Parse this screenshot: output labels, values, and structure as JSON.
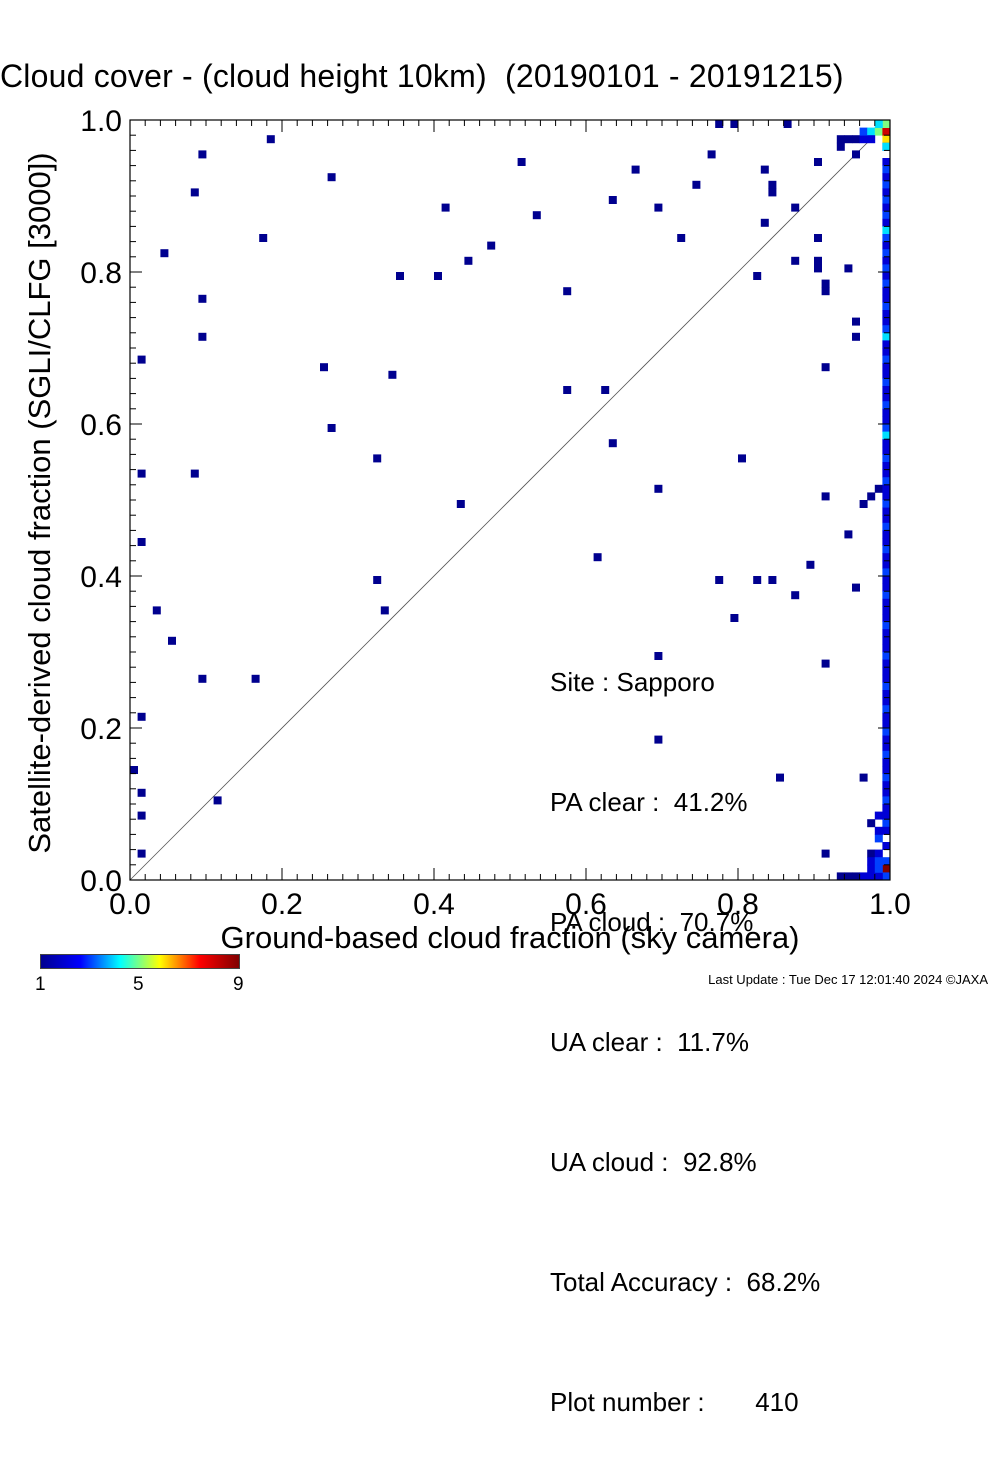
{
  "title": {
    "main": "Cloud cover - (cloud height 10km)",
    "period": "(20190101 - 20191215)"
  },
  "stats": {
    "site": "Site : Sapporo",
    "pa_clear": "PA clear :  41.2%",
    "pa_cloud": "PA cloud :  70.7%",
    "ua_clear": "UA clear :  11.7%",
    "ua_cloud": "UA cloud :  92.8%",
    "total_accuracy": "Total Accuracy :  68.2%",
    "plot_number": "Plot number :       410"
  },
  "footer": "Last Update : Tue Dec 17 12:01:40 2024  ©JAXA",
  "colorbar": {
    "ticks": [
      "1",
      "5",
      "9"
    ],
    "colors": [
      "#00008f",
      "#0000ff",
      "#00ffff",
      "#ffff00",
      "#ff0000",
      "#800000"
    ]
  },
  "chart_data": {
    "type": "heatmap",
    "xlabel": "Ground-based cloud fraction (sky camera)",
    "ylabel": "Satellite-derived cloud fraction (SGLI/CLFG [3000])",
    "xlim": [
      0.0,
      1.0
    ],
    "ylim": [
      0.0,
      1.0
    ],
    "xticks": [
      "0.0",
      "0.2",
      "0.4",
      "0.6",
      "0.8",
      "1.0"
    ],
    "yticks": [
      "0.0",
      "0.2",
      "0.4",
      "0.6",
      "0.8",
      "1.0"
    ],
    "reference_line": "1:1 diagonal",
    "points": [
      [
        0.01,
        0.03,
        1
      ],
      [
        0.0,
        0.14,
        1
      ],
      [
        0.01,
        0.11,
        1
      ],
      [
        0.01,
        0.08,
        1
      ],
      [
        0.01,
        0.21,
        1
      ],
      [
        0.01,
        0.44,
        1
      ],
      [
        0.01,
        0.53,
        1
      ],
      [
        0.01,
        0.68,
        1
      ],
      [
        0.03,
        0.35,
        1
      ],
      [
        0.04,
        0.82,
        1
      ],
      [
        0.05,
        0.31,
        1
      ],
      [
        0.08,
        0.53,
        1
      ],
      [
        0.08,
        0.9,
        1
      ],
      [
        0.09,
        0.26,
        1
      ],
      [
        0.09,
        0.71,
        1
      ],
      [
        0.09,
        0.76,
        1
      ],
      [
        0.09,
        0.95,
        1
      ],
      [
        0.11,
        0.1,
        1
      ],
      [
        0.16,
        0.26,
        1
      ],
      [
        0.17,
        0.84,
        1
      ],
      [
        0.18,
        0.97,
        1
      ],
      [
        0.25,
        0.67,
        1
      ],
      [
        0.26,
        0.59,
        1
      ],
      [
        0.26,
        0.92,
        1
      ],
      [
        0.32,
        0.39,
        1
      ],
      [
        0.32,
        0.55,
        1
      ],
      [
        0.33,
        0.35,
        1
      ],
      [
        0.34,
        0.66,
        1
      ],
      [
        0.35,
        0.79,
        1
      ],
      [
        0.4,
        0.79,
        1
      ],
      [
        0.41,
        0.88,
        1
      ],
      [
        0.43,
        0.49,
        1
      ],
      [
        0.44,
        0.81,
        1
      ],
      [
        0.47,
        0.83,
        1
      ],
      [
        0.51,
        0.94,
        1
      ],
      [
        0.53,
        0.87,
        1
      ],
      [
        0.57,
        0.77,
        1
      ],
      [
        0.57,
        0.64,
        1
      ],
      [
        0.61,
        0.42,
        1
      ],
      [
        0.62,
        0.64,
        1
      ],
      [
        0.63,
        0.57,
        1
      ],
      [
        0.63,
        0.89,
        1
      ],
      [
        0.66,
        0.93,
        1
      ],
      [
        0.69,
        0.29,
        1
      ],
      [
        0.69,
        0.18,
        1
      ],
      [
        0.69,
        0.51,
        1
      ],
      [
        0.69,
        0.88,
        1
      ],
      [
        0.72,
        0.84,
        1
      ],
      [
        0.74,
        0.91,
        1
      ],
      [
        0.76,
        0.95,
        1
      ],
      [
        0.77,
        0.39,
        1
      ],
      [
        0.77,
        0.99,
        1
      ],
      [
        0.79,
        1.0,
        1
      ],
      [
        0.79,
        0.34,
        1
      ],
      [
        0.8,
        0.55,
        1
      ],
      [
        0.82,
        0.79,
        1
      ],
      [
        0.82,
        0.39,
        1
      ],
      [
        0.83,
        0.86,
        1
      ],
      [
        0.83,
        0.93,
        1
      ],
      [
        0.84,
        0.39,
        1
      ],
      [
        0.84,
        0.9,
        1
      ],
      [
        0.84,
        0.91,
        1
      ],
      [
        0.85,
        0.13,
        1
      ],
      [
        0.86,
        0.99,
        1
      ],
      [
        0.87,
        0.81,
        1
      ],
      [
        0.87,
        0.37,
        1
      ],
      [
        0.87,
        0.88,
        1
      ],
      [
        0.89,
        0.41,
        1
      ],
      [
        0.9,
        0.84,
        1
      ],
      [
        0.9,
        0.8,
        1
      ],
      [
        0.9,
        0.81,
        1
      ],
      [
        0.9,
        0.94,
        1
      ],
      [
        0.91,
        0.67,
        1
      ],
      [
        0.91,
        0.5,
        1
      ],
      [
        0.91,
        0.28,
        1
      ],
      [
        0.91,
        0.03,
        1
      ],
      [
        0.91,
        0.78,
        1
      ],
      [
        0.91,
        0.77,
        1
      ],
      [
        0.93,
        0.96,
        1
      ],
      [
        0.94,
        0.45,
        1
      ],
      [
        0.94,
        0.8,
        1
      ],
      [
        0.95,
        0.38,
        1
      ],
      [
        0.95,
        0.71,
        1
      ],
      [
        0.95,
        0.73,
        1
      ],
      [
        0.95,
        0.95,
        1
      ],
      [
        0.96,
        0.13,
        1
      ],
      [
        0.96,
        0.49,
        1
      ],
      [
        0.97,
        0.5,
        1
      ],
      [
        0.97,
        0.03,
        1
      ],
      [
        0.98,
        0.51,
        1
      ],
      [
        0.93,
        0.97,
        1
      ],
      [
        0.94,
        0.97,
        1
      ],
      [
        0.95,
        0.97,
        1
      ],
      [
        0.96,
        0.97,
        2
      ],
      [
        0.96,
        0.98,
        3
      ],
      [
        0.97,
        0.98,
        4
      ],
      [
        0.98,
        0.98,
        5
      ],
      [
        0.99,
        0.97,
        6
      ],
      [
        1.0,
        0.99,
        9
      ],
      [
        1.0,
        0.98,
        8
      ],
      [
        0.99,
        0.99,
        5
      ],
      [
        0.98,
        0.99,
        4
      ],
      [
        0.97,
        0.97,
        2
      ],
      [
        0.99,
        0.96,
        3
      ],
      [
        1.0,
        0.96,
        4
      ],
      [
        0.99,
        0.94,
        2
      ],
      [
        1.0,
        0.93,
        3
      ],
      [
        0.99,
        0.92,
        2
      ],
      [
        1.0,
        0.91,
        3
      ],
      [
        0.99,
        0.9,
        2
      ],
      [
        1.0,
        0.89,
        3
      ],
      [
        0.99,
        0.88,
        2
      ],
      [
        1.0,
        0.87,
        3
      ],
      [
        0.99,
        0.86,
        2
      ],
      [
        1.0,
        0.85,
        4
      ],
      [
        0.99,
        0.84,
        3
      ],
      [
        1.0,
        0.83,
        2
      ],
      [
        0.99,
        0.82,
        3
      ],
      [
        1.0,
        0.81,
        2
      ],
      [
        0.99,
        0.8,
        3
      ],
      [
        1.0,
        0.79,
        2
      ],
      [
        0.99,
        0.78,
        3
      ],
      [
        1.0,
        0.77,
        2
      ],
      [
        0.99,
        0.76,
        2
      ],
      [
        1.0,
        0.75,
        3
      ],
      [
        0.99,
        0.74,
        2
      ],
      [
        1.0,
        0.73,
        2
      ],
      [
        0.99,
        0.72,
        3
      ],
      [
        1.0,
        0.71,
        4
      ],
      [
        0.99,
        0.7,
        2
      ],
      [
        1.0,
        0.69,
        2
      ],
      [
        0.99,
        0.68,
        3
      ],
      [
        1.0,
        0.67,
        2
      ],
      [
        0.99,
        0.66,
        2
      ],
      [
        1.0,
        0.65,
        3
      ],
      [
        0.99,
        0.64,
        2
      ],
      [
        1.0,
        0.63,
        2
      ],
      [
        0.99,
        0.62,
        3
      ],
      [
        1.0,
        0.61,
        2
      ],
      [
        0.99,
        0.6,
        2
      ],
      [
        1.0,
        0.59,
        3
      ],
      [
        0.99,
        0.58,
        4
      ],
      [
        1.0,
        0.57,
        2
      ],
      [
        0.99,
        0.56,
        2
      ],
      [
        1.0,
        0.55,
        3
      ],
      [
        0.99,
        0.54,
        2
      ],
      [
        1.0,
        0.53,
        2
      ],
      [
        0.99,
        0.52,
        3
      ],
      [
        1.0,
        0.51,
        2
      ],
      [
        0.99,
        0.5,
        2
      ],
      [
        1.0,
        0.49,
        3
      ],
      [
        0.99,
        0.48,
        2
      ],
      [
        1.0,
        0.47,
        2
      ],
      [
        0.99,
        0.46,
        3
      ],
      [
        1.0,
        0.45,
        2
      ],
      [
        0.99,
        0.44,
        2
      ],
      [
        1.0,
        0.43,
        3
      ],
      [
        0.99,
        0.42,
        2
      ],
      [
        1.0,
        0.41,
        2
      ],
      [
        0.99,
        0.4,
        3
      ],
      [
        1.0,
        0.39,
        2
      ],
      [
        0.99,
        0.38,
        2
      ],
      [
        1.0,
        0.37,
        3
      ],
      [
        0.99,
        0.36,
        2
      ],
      [
        1.0,
        0.35,
        2
      ],
      [
        0.99,
        0.34,
        2
      ],
      [
        1.0,
        0.33,
        3
      ],
      [
        0.99,
        0.32,
        2
      ],
      [
        1.0,
        0.31,
        2
      ],
      [
        0.99,
        0.3,
        2
      ],
      [
        1.0,
        0.29,
        3
      ],
      [
        0.99,
        0.28,
        2
      ],
      [
        1.0,
        0.27,
        2
      ],
      [
        0.99,
        0.26,
        2
      ],
      [
        1.0,
        0.25,
        3
      ],
      [
        0.99,
        0.24,
        2
      ],
      [
        1.0,
        0.23,
        2
      ],
      [
        0.99,
        0.22,
        3
      ],
      [
        1.0,
        0.21,
        2
      ],
      [
        0.99,
        0.2,
        2
      ],
      [
        1.0,
        0.19,
        3
      ],
      [
        0.99,
        0.18,
        2
      ],
      [
        1.0,
        0.17,
        2
      ],
      [
        0.99,
        0.16,
        3
      ],
      [
        1.0,
        0.15,
        2
      ],
      [
        0.99,
        0.14,
        2
      ],
      [
        1.0,
        0.13,
        3
      ],
      [
        0.99,
        0.12,
        2
      ],
      [
        1.0,
        0.11,
        2
      ],
      [
        0.99,
        0.1,
        3
      ],
      [
        1.0,
        0.09,
        2
      ],
      [
        0.99,
        0.08,
        2
      ],
      [
        1.0,
        0.07,
        3
      ],
      [
        0.99,
        0.06,
        2
      ],
      [
        0.98,
        0.05,
        3
      ],
      [
        0.99,
        0.04,
        2
      ],
      [
        0.98,
        0.03,
        2
      ],
      [
        0.99,
        0.02,
        3
      ],
      [
        1.0,
        0.01,
        9
      ],
      [
        0.99,
        0.0,
        3
      ],
      [
        0.98,
        0.0,
        2
      ],
      [
        0.97,
        0.0,
        2
      ],
      [
        0.96,
        0.0,
        2
      ],
      [
        0.95,
        0.0,
        1
      ],
      [
        0.94,
        0.0,
        1
      ],
      [
        0.93,
        0.0,
        1
      ],
      [
        0.97,
        0.01,
        2
      ],
      [
        0.98,
        0.01,
        3
      ],
      [
        0.97,
        0.02,
        2
      ],
      [
        0.98,
        0.06,
        2
      ],
      [
        0.97,
        0.07,
        1
      ],
      [
        0.98,
        0.08,
        2
      ],
      [
        0.98,
        0.02,
        3
      ]
    ]
  }
}
